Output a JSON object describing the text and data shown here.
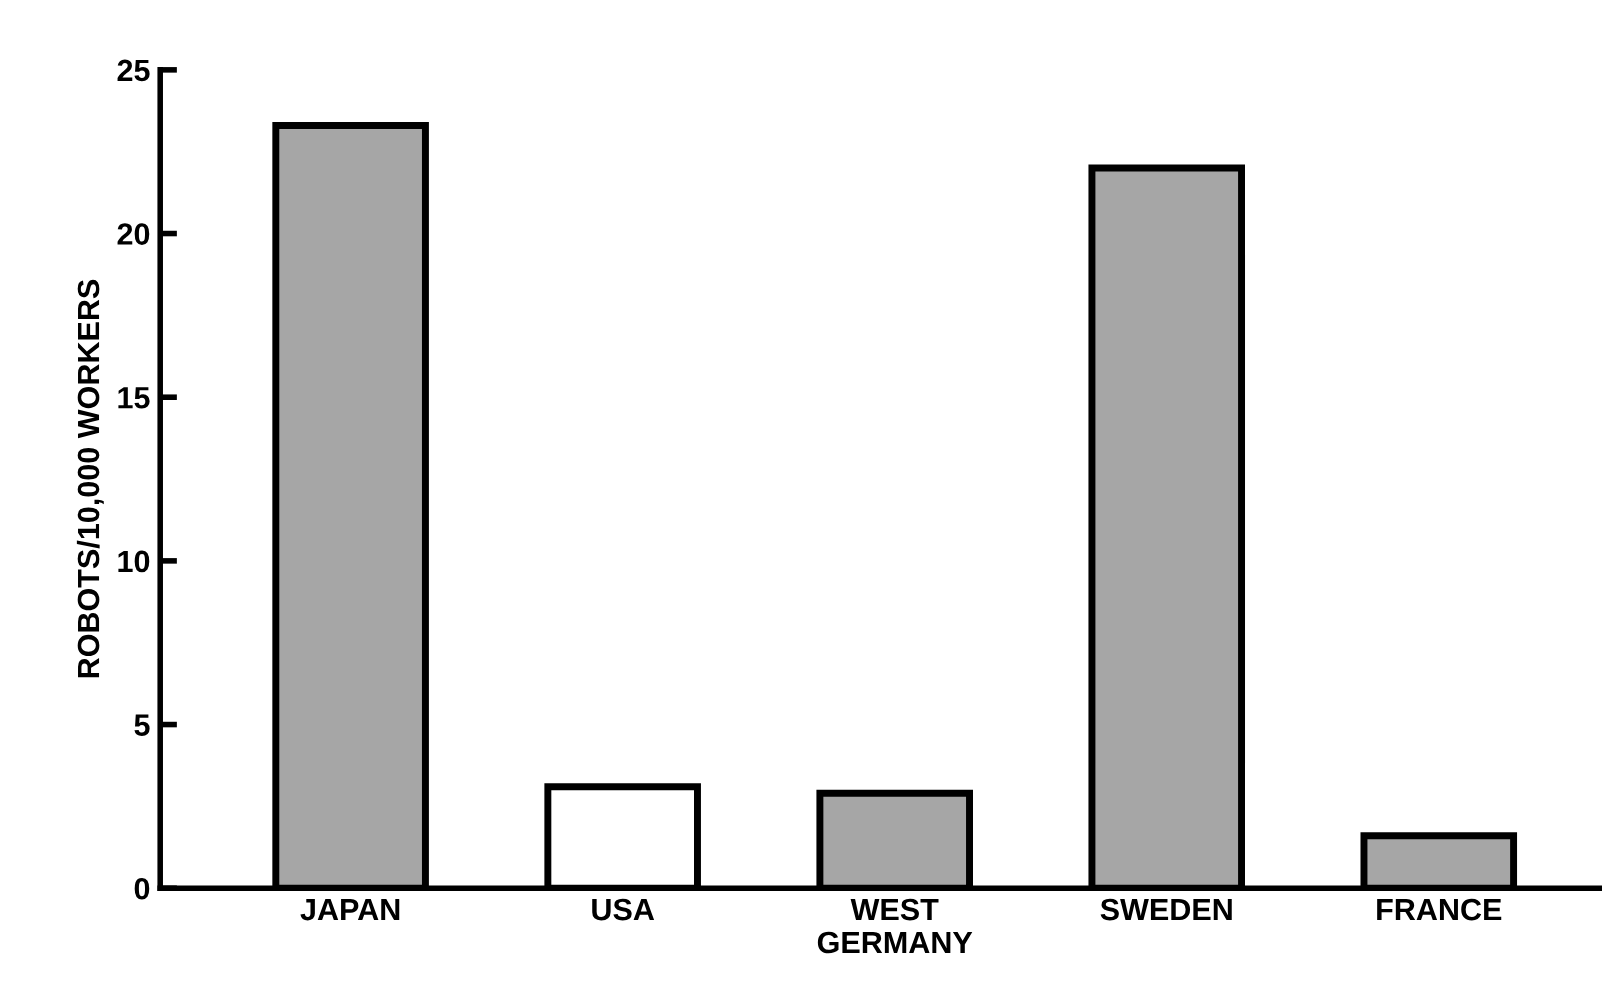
{
  "chart_data": {
    "type": "bar",
    "ylabel": "ROBOTS/10,000 WORKERS",
    "categories": [
      "JAPAN",
      "USA",
      "WEST\nGERMANY",
      "SWEDEN",
      "FRANCE"
    ],
    "values": [
      23.3,
      3.1,
      2.9,
      22,
      1.6
    ],
    "colors": [
      "#a6a6a6",
      "#ffffff",
      "#a6a6a6",
      "#a6a6a6",
      "#a6a6a6"
    ],
    "ylim": [
      0,
      25
    ],
    "yticks": [
      0,
      5,
      10,
      15,
      20,
      25
    ],
    "grid": false
  }
}
